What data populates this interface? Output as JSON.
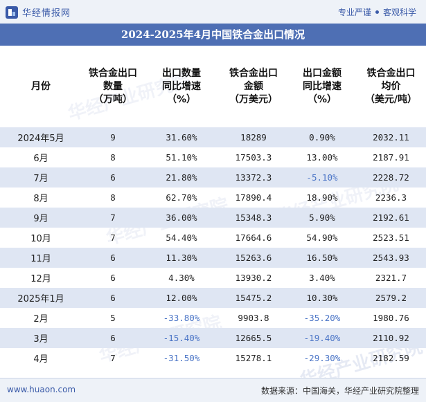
{
  "header": {
    "logo_text": "华经情报网",
    "tagline_left": "专业严谨",
    "tagline_right": "客观科学"
  },
  "title": "2024-2025年4月中国铁合金出口情况",
  "table": {
    "columns": [
      "月份",
      "铁合金出口\n数量\n（万吨）",
      "出口数量\n同比增速\n（%）",
      "铁合金出口\n金额\n（万美元）",
      "出口金额\n同比增速\n（%）",
      "铁合金出口\n均价\n（美元/吨）"
    ],
    "rows": [
      [
        "2024年5月",
        "9",
        "31.60%",
        "18289",
        "0.90%",
        "2032.11"
      ],
      [
        "6月",
        "8",
        "51.10%",
        "17503.3",
        "13.00%",
        "2187.91"
      ],
      [
        "7月",
        "6",
        "21.80%",
        "13372.3",
        "-5.10%",
        "2228.72"
      ],
      [
        "8月",
        "8",
        "62.70%",
        "17890.4",
        "18.90%",
        "2236.3"
      ],
      [
        "9月",
        "7",
        "36.00%",
        "15348.3",
        "5.90%",
        "2192.61"
      ],
      [
        "10月",
        "7",
        "54.40%",
        "17664.6",
        "54.90%",
        "2523.51"
      ],
      [
        "11月",
        "6",
        "11.30%",
        "15263.6",
        "16.50%",
        "2543.93"
      ],
      [
        "12月",
        "6",
        "4.30%",
        "13930.2",
        "3.40%",
        "2321.7"
      ],
      [
        "2025年1月",
        "6",
        "12.00%",
        "15475.2",
        "10.30%",
        "2579.2"
      ],
      [
        "2月",
        "5",
        "-33.80%",
        "9903.8",
        "-35.20%",
        "1980.76"
      ],
      [
        "3月",
        "6",
        "-15.40%",
        "12665.5",
        "-19.40%",
        "2110.92"
      ],
      [
        "4月",
        "7",
        "-31.50%",
        "15278.1",
        "-29.30%",
        "2182.59"
      ]
    ]
  },
  "footer": {
    "site": "www.huaon.com",
    "source": "数据来源：中国海关，华经产业研究院整理"
  },
  "watermark": "华经产业研究院",
  "colors": {
    "title_bar": "#4e6fb4",
    "stripe": "#dfe6f3",
    "negative": "#4a74c6"
  }
}
